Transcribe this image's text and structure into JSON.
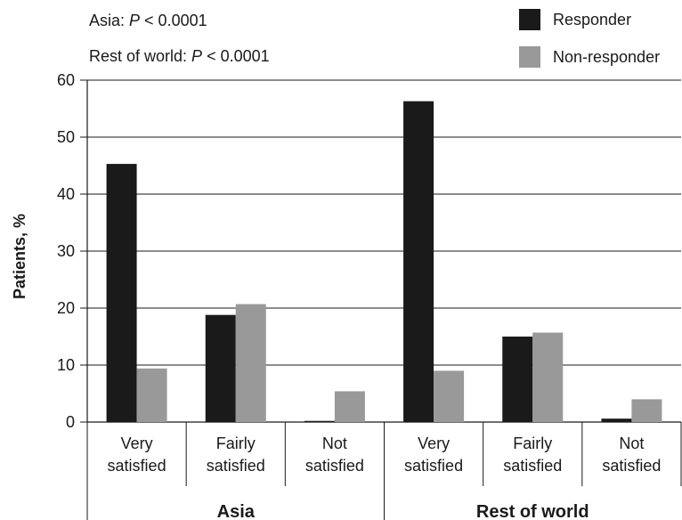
{
  "annotations": {
    "line1_prefix": "Asia: ",
    "line1_p": "P",
    "line1_suffix": " < 0.0001",
    "line2_prefix": "Rest of world: ",
    "line2_p": "P",
    "line2_suffix": " < 0.0001"
  },
  "legend": {
    "responder": "Responder",
    "nonresponder": "Non-responder"
  },
  "colors": {
    "responder": "#1a1a1a",
    "nonresponder": "#999999"
  },
  "chart_data": {
    "type": "bar",
    "ylabel": "Patients, %",
    "xlabel": "",
    "ylim": [
      0,
      60
    ],
    "yticks": [
      0,
      10,
      20,
      30,
      40,
      50,
      60
    ],
    "grid": true,
    "legend_position": "top-right",
    "groups": [
      {
        "label": "Asia",
        "categories": [
          [
            "Very",
            "satisfied"
          ],
          [
            "Fairly",
            "satisfied"
          ],
          [
            "Not",
            "satisfied"
          ]
        ]
      },
      {
        "label": "Rest of world",
        "categories": [
          [
            "Very",
            "satisfied"
          ],
          [
            "Fairly",
            "satisfied"
          ],
          [
            "Not",
            "satisfied"
          ]
        ]
      }
    ],
    "categories": [
      "Very satisfied",
      "Fairly satisfied",
      "Not satisfied",
      "Very satisfied",
      "Fairly satisfied",
      "Not satisfied"
    ],
    "series": [
      {
        "name": "Responder",
        "values": [
          45.3,
          18.8,
          0.2,
          56.3,
          15.0,
          0.6
        ]
      },
      {
        "name": "Non-responder",
        "values": [
          9.4,
          20.7,
          5.4,
          9.0,
          15.7,
          4.0
        ]
      }
    ]
  }
}
